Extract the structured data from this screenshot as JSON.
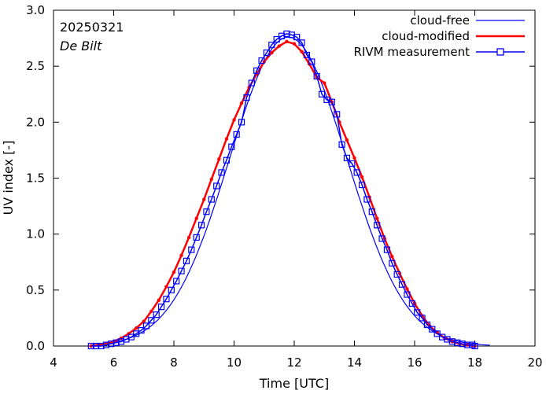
{
  "chart_data": {
    "type": "line",
    "title": "",
    "xlabel": "Time  [UTC]",
    "ylabel": "UV index  [-]",
    "xlim": [
      4,
      20
    ],
    "ylim": [
      0,
      3.0
    ],
    "x_ticks": [
      4,
      6,
      8,
      10,
      12,
      14,
      16,
      18,
      20
    ],
    "x_tick_labels": [
      "4",
      "6",
      "8",
      "10",
      "12",
      "14",
      "16",
      "18",
      "20"
    ],
    "y_ticks": [
      0,
      0.5,
      1.0,
      1.5,
      2.0,
      2.5,
      3.0
    ],
    "y_tick_labels": [
      "0.0",
      "0.5",
      "1.0",
      "1.5",
      "2.0",
      "2.5",
      "3.0"
    ],
    "annotations": [
      {
        "text": "20250321",
        "style": "normal"
      },
      {
        "text": "De Bilt",
        "style": "italic"
      }
    ],
    "legend_position": "top-right",
    "series": [
      {
        "name": "cloud-free",
        "color": "#0000ff",
        "marker": "none",
        "model": {
          "peak": 2.76,
          "center": 11.8,
          "sigma": 1.95,
          "start": 5.2,
          "end": 18.5
        }
      },
      {
        "name": "cloud-modified",
        "color": "#ff0000",
        "marker": "dot",
        "x": [
          5.25,
          5.5,
          5.75,
          6.0,
          6.25,
          6.5,
          6.75,
          7.0,
          7.25,
          7.5,
          7.75,
          8.0,
          8.25,
          8.5,
          8.75,
          9.0,
          9.25,
          9.5,
          9.75,
          10.0,
          10.25,
          10.5,
          10.75,
          11.0,
          11.25,
          11.5,
          11.75,
          12.0,
          12.25,
          12.5,
          12.75,
          13.0,
          13.25,
          13.5,
          13.75,
          14.0,
          14.25,
          14.5,
          14.75,
          15.0,
          15.25,
          15.5,
          15.75,
          16.0,
          16.25,
          16.5,
          16.75,
          17.0,
          17.25,
          17.5,
          17.75,
          18.0
        ],
        "y": [
          0.0,
          0.01,
          0.02,
          0.04,
          0.07,
          0.11,
          0.16,
          0.22,
          0.31,
          0.41,
          0.53,
          0.66,
          0.81,
          0.97,
          1.14,
          1.31,
          1.49,
          1.67,
          1.85,
          2.02,
          2.17,
          2.31,
          2.43,
          2.54,
          2.62,
          2.68,
          2.72,
          2.7,
          2.63,
          2.52,
          2.4,
          2.35,
          2.18,
          2.0,
          1.84,
          1.68,
          1.51,
          1.33,
          1.14,
          0.96,
          0.8,
          0.65,
          0.51,
          0.38,
          0.27,
          0.18,
          0.12,
          0.07,
          0.04,
          0.02,
          0.01,
          0.0
        ]
      },
      {
        "name": "RIVM measurement",
        "color": "#0000ff",
        "marker": "square",
        "x": [
          5.25,
          5.417,
          5.583,
          5.75,
          5.917,
          6.083,
          6.25,
          6.417,
          6.583,
          6.75,
          6.917,
          7.083,
          7.25,
          7.417,
          7.583,
          7.75,
          7.917,
          8.083,
          8.25,
          8.417,
          8.583,
          8.75,
          8.917,
          9.083,
          9.25,
          9.417,
          9.583,
          9.75,
          9.917,
          10.083,
          10.25,
          10.417,
          10.583,
          10.75,
          10.917,
          11.083,
          11.25,
          11.417,
          11.583,
          11.75,
          11.917,
          12.083,
          12.25,
          12.417,
          12.583,
          12.75,
          12.917,
          13.083,
          13.25,
          13.417,
          13.583,
          13.75,
          13.917,
          14.083,
          14.25,
          14.417,
          14.583,
          14.75,
          14.917,
          15.083,
          15.25,
          15.417,
          15.583,
          15.75,
          15.917,
          16.083,
          16.25,
          16.417,
          16.583,
          16.75,
          16.917,
          17.083,
          17.25,
          17.417,
          17.583,
          17.75,
          17.917,
          18.0
        ],
        "y": [
          0.0,
          0.0,
          0.0,
          0.01,
          0.02,
          0.03,
          0.04,
          0.06,
          0.08,
          0.11,
          0.14,
          0.18,
          0.23,
          0.28,
          0.35,
          0.42,
          0.5,
          0.58,
          0.67,
          0.76,
          0.86,
          0.97,
          1.08,
          1.2,
          1.31,
          1.43,
          1.55,
          1.66,
          1.78,
          1.89,
          2.0,
          2.22,
          2.35,
          2.46,
          2.55,
          2.62,
          2.69,
          2.74,
          2.77,
          2.79,
          2.78,
          2.76,
          2.71,
          2.6,
          2.54,
          2.41,
          2.25,
          2.2,
          2.18,
          2.07,
          1.8,
          1.68,
          1.63,
          1.55,
          1.44,
          1.31,
          1.2,
          1.08,
          0.96,
          0.86,
          0.74,
          0.64,
          0.55,
          0.46,
          0.38,
          0.3,
          0.25,
          0.19,
          0.15,
          0.11,
          0.08,
          0.06,
          0.04,
          0.03,
          0.02,
          0.01,
          0.01,
          0.0
        ]
      }
    ]
  }
}
